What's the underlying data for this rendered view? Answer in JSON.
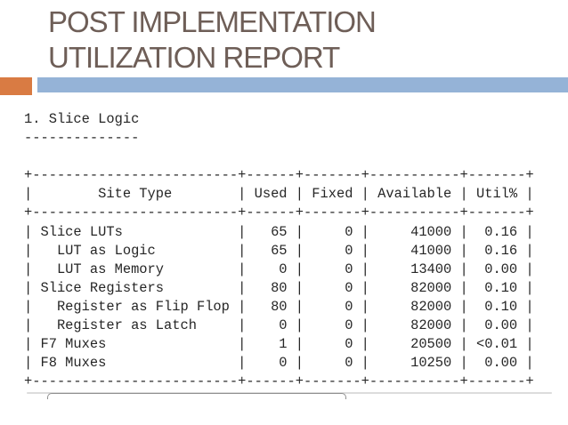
{
  "slide": {
    "title": {
      "line1": "POST IMPLEMENTATION",
      "line2": "UTILIZATION REPORT"
    },
    "accent": {
      "orange": "#d97b43",
      "blue": "#95b3d7",
      "title_text_color": "#6e5e57"
    }
  },
  "report": {
    "section_heading": "1. Slice Logic",
    "section_underline": "--------------",
    "lines": [
      "1. Slice Logic",
      "--------------",
      "",
      "+-------------------------+------+-------+-----------+-------+",
      "|        Site Type        | Used | Fixed | Available | Util% |",
      "+-------------------------+------+-------+-----------+-------+",
      "| Slice LUTs              |   65 |     0 |     41000 |  0.16 |",
      "|   LUT as Logic          |   65 |     0 |     41000 |  0.16 |",
      "|   LUT as Memory         |    0 |     0 |     13400 |  0.00 |",
      "| Slice Registers         |   80 |     0 |     82000 |  0.10 |",
      "|   Register as Flip Flop |   80 |     0 |     82000 |  0.10 |",
      "|   Register as Latch     |    0 |     0 |     82000 |  0.00 |",
      "| F7 Muxes                |    1 |     0 |     20500 | <0.01 |",
      "| F8 Muxes                |    0 |     0 |     10250 |  0.00 |",
      "+-------------------------+------+-------+-----------+-------+"
    ],
    "table": {
      "columns": [
        "Site Type",
        "Used",
        "Fixed",
        "Available",
        "Util%"
      ],
      "rows": [
        {
          "site_type": "Slice LUTs",
          "indent": 0,
          "used": "65",
          "fixed": "0",
          "available": "41000",
          "util_pct": "0.16"
        },
        {
          "site_type": "LUT as Logic",
          "indent": 1,
          "used": "65",
          "fixed": "0",
          "available": "41000",
          "util_pct": "0.16"
        },
        {
          "site_type": "LUT as Memory",
          "indent": 1,
          "used": "0",
          "fixed": "0",
          "available": "13400",
          "util_pct": "0.00"
        },
        {
          "site_type": "Slice Registers",
          "indent": 0,
          "used": "80",
          "fixed": "0",
          "available": "82000",
          "util_pct": "0.10"
        },
        {
          "site_type": "Register as Flip Flop",
          "indent": 1,
          "used": "80",
          "fixed": "0",
          "available": "82000",
          "util_pct": "0.10"
        },
        {
          "site_type": "Register as Latch",
          "indent": 1,
          "used": "0",
          "fixed": "0",
          "available": "82000",
          "util_pct": "0.00"
        },
        {
          "site_type": "F7 Muxes",
          "indent": 0,
          "used": "1",
          "fixed": "0",
          "available": "20500",
          "util_pct": "<0.01"
        },
        {
          "site_type": "F8 Muxes",
          "indent": 0,
          "used": "0",
          "fixed": "0",
          "available": "10250",
          "util_pct": "0.00"
        }
      ]
    }
  }
}
